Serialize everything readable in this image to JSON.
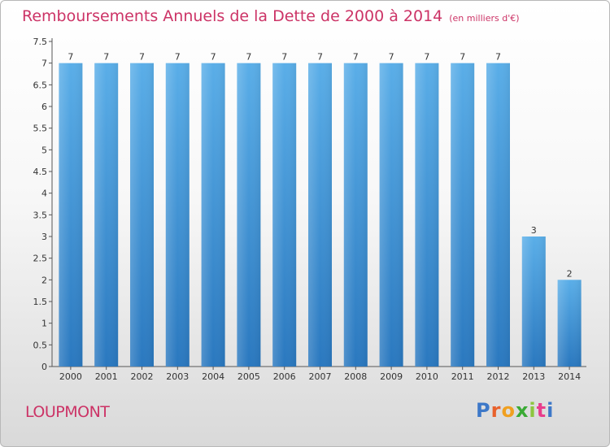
{
  "title": "Remboursements Annuels de la Dette de 2000 à 2014",
  "unit": "(en milliers d'€)",
  "commune": "LOUPMONT",
  "logo": {
    "letters": [
      "P",
      "r",
      "o",
      "x",
      "i",
      "t",
      "i"
    ],
    "colors": [
      "#3d78c8",
      "#e8612c",
      "#f0a020",
      "#3aaa35",
      "#8cc63f",
      "#e83e8c",
      "#3d78c8"
    ]
  },
  "colors": {
    "bar_top": "#5aaee8",
    "bar_bottom": "#2a78bf",
    "title": "#cc3366"
  },
  "chart_data": {
    "type": "bar",
    "title": "Remboursements Annuels de la Dette de 2000 à 2014",
    "xlabel": "",
    "ylabel": "",
    "categories": [
      "2000",
      "2001",
      "2002",
      "2003",
      "2004",
      "2005",
      "2006",
      "2007",
      "2008",
      "2009",
      "2010",
      "2011",
      "2012",
      "2013",
      "2014"
    ],
    "values": [
      7,
      7,
      7,
      7,
      7,
      7,
      7,
      7,
      7,
      7,
      7,
      7,
      7,
      3,
      2
    ],
    "data_labels": [
      "7",
      "7",
      "7",
      "7",
      "7",
      "7",
      "7",
      "7",
      "7",
      "7",
      "7",
      "7",
      "7",
      "3",
      "2"
    ],
    "yticks": [
      0,
      0.5,
      1,
      1.5,
      2,
      2.5,
      3,
      3.5,
      4,
      4.5,
      5,
      5.5,
      6,
      6.5,
      7,
      7.5
    ],
    "ytick_labels": [
      "0",
      "0.5",
      "1",
      "1.5",
      "2",
      "2.5",
      "3",
      "3.5",
      "4",
      "4.5",
      "5",
      "5.5",
      "6",
      "6.5",
      "7",
      "7.5"
    ],
    "ylim": [
      0,
      7.5
    ],
    "grid": false
  }
}
